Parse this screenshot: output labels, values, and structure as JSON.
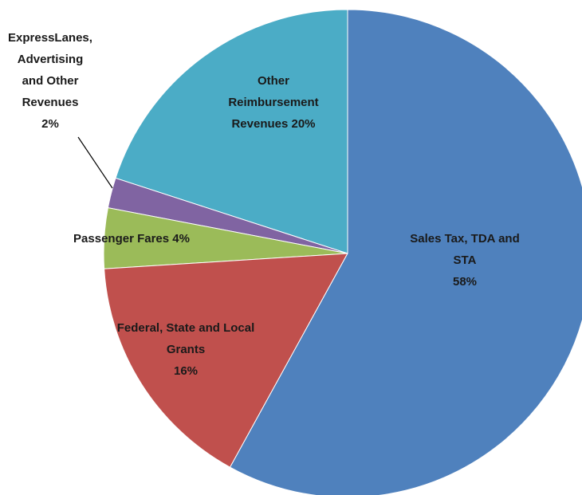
{
  "chart_data": {
    "type": "pie",
    "categories": [
      "Sales Tax, TDA and STA",
      "Federal, State and Local Grants",
      "Passenger Fares",
      "ExpressLanes, Advertising and Other Revenues",
      "Other Reimbursement Revenues"
    ],
    "values": [
      58,
      16,
      4,
      2,
      20
    ],
    "value_labels": [
      "58%",
      "16%",
      "4%",
      "2%",
      "20%"
    ],
    "colors": [
      "#4f81bd",
      "#c0504d",
      "#9bbb59",
      "#8064a2",
      "#4bacc6"
    ]
  }
}
